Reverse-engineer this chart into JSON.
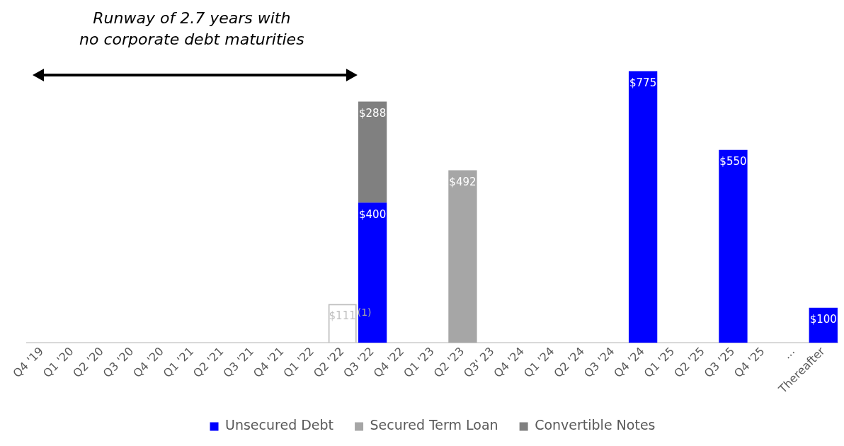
{
  "chart_data": {
    "type": "bar",
    "stacked": true,
    "legend": "bottom",
    "grid": false,
    "categories": [
      "Q4 '19",
      "Q1 '20",
      "Q2 '20",
      "Q3 '20",
      "Q4 '20",
      "Q1 '21",
      "Q2 '21",
      "Q3 '21",
      "Q4 '21",
      "Q1 '22",
      "Q2 '22",
      "Q3 '22",
      "Q4 '22",
      "Q1 '23",
      "Q2 '23",
      "Q3' 23",
      "Q4 '24",
      "Q1 '24",
      "Q2 '24",
      "Q3 '24",
      "Q4 '24",
      "Q1 '25",
      "Q2 '25",
      "Q3 '25",
      "Q4 '25",
      "...",
      "Thereafter"
    ],
    "series": [
      {
        "name": "Unsecured Debt",
        "color": "#0000ff",
        "values": [
          null,
          null,
          null,
          null,
          null,
          null,
          null,
          null,
          null,
          null,
          null,
          400,
          null,
          null,
          null,
          null,
          null,
          null,
          null,
          null,
          775,
          null,
          null,
          550,
          null,
          null,
          100
        ],
        "value_labels": [
          null,
          null,
          null,
          null,
          null,
          null,
          null,
          null,
          null,
          null,
          null,
          "$400",
          null,
          null,
          null,
          null,
          null,
          null,
          null,
          null,
          "$775",
          null,
          null,
          "$550",
          null,
          null,
          "$100"
        ]
      },
      {
        "name": "Secured Term Loan",
        "color": "#a6a6a6",
        "values": [
          null,
          null,
          null,
          null,
          null,
          null,
          null,
          null,
          null,
          null,
          null,
          null,
          null,
          null,
          492,
          null,
          null,
          null,
          null,
          null,
          null,
          null,
          null,
          null,
          null,
          null,
          null
        ],
        "value_labels": [
          null,
          null,
          null,
          null,
          null,
          null,
          null,
          null,
          null,
          null,
          null,
          null,
          null,
          null,
          "$492",
          null,
          null,
          null,
          null,
          null,
          null,
          null,
          null,
          null,
          null,
          null,
          null
        ]
      },
      {
        "name": "Convertible Notes",
        "color": "#808080",
        "values": [
          null,
          null,
          null,
          null,
          null,
          null,
          null,
          null,
          null,
          null,
          null,
          288,
          null,
          null,
          null,
          null,
          null,
          null,
          null,
          null,
          null,
          null,
          null,
          null,
          null,
          null,
          null
        ],
        "value_labels": [
          null,
          null,
          null,
          null,
          null,
          null,
          null,
          null,
          null,
          null,
          null,
          "$288",
          null,
          null,
          null,
          null,
          null,
          null,
          null,
          null,
          null,
          null,
          null,
          null,
          null,
          null,
          null
        ]
      },
      {
        "color": "#bfbfbf",
        "line_style": "dashed",
        "values": [
          null,
          null,
          null,
          null,
          null,
          null,
          null,
          null,
          null,
          null,
          111,
          null,
          null,
          null,
          null,
          null,
          null,
          null,
          null,
          null,
          null,
          null,
          null,
          null,
          null,
          null,
          null
        ],
        "value_labels": [
          null,
          null,
          null,
          null,
          null,
          null,
          null,
          null,
          null,
          null,
          "$111",
          null,
          null,
          null,
          null,
          null,
          null,
          null,
          null,
          null,
          null,
          null,
          null,
          null,
          null,
          null,
          null
        ]
      }
    ],
    "annotations": [
      "Runway of 2.7 years with no corporate debt maturities",
      {
        "text": "(1)",
        "x": "Q2 '22",
        "y": 111
      }
    ]
  }
}
